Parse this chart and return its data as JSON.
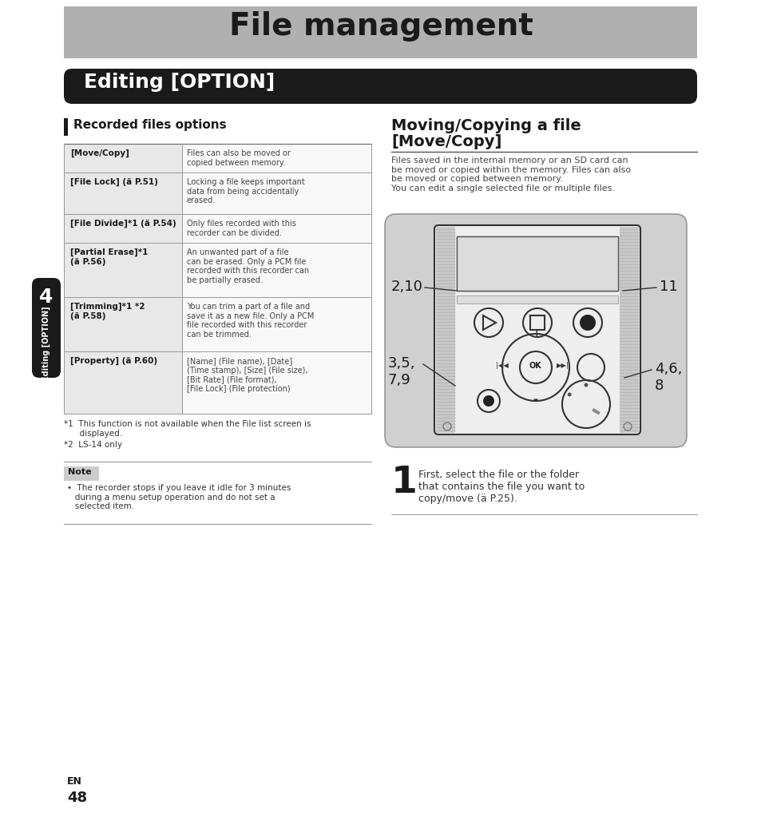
{
  "page_bg": "#ffffff",
  "header_bg": "#b0b0b0",
  "header_text": "File management",
  "header_text_color": "#1a1a1a",
  "section_bar_bg": "#1a1a1a",
  "section_bar_text": "Editing [OPTION]",
  "section_bar_text_color": "#ffffff",
  "left_section_title": "Recorded files options",
  "left_bar_color": "#1a1a1a",
  "table_rows": [
    {
      "col1": "[Move/Copy]",
      "col2": "Files can also be moved or\ncopied between memory."
    },
    {
      "col1": "[File Lock] (ä P.51)",
      "col2": "Locking a file keeps important\ndata from being accidentally\nerased."
    },
    {
      "col1": "[File Divide]*1 (ä P.54)",
      "col2": "Only files recorded with this\nrecorder can be divided."
    },
    {
      "col1": "[Partial Erase]*1\n(ä P.56)",
      "col2": "An unwanted part of a file\ncan be erased. Only a PCM file\nrecorded with this recorder can\nbe partially erased."
    },
    {
      "col1": "[Trimming]*1 *2\n(ä P.58)",
      "col2": "You can trim a part of a file and\nsave it as a new file. Only a PCM\nfile recorded with this recorder\ncan be trimmed."
    },
    {
      "col1": "[Property] (ä P.60)",
      "col2": "[Name] (File name), [Date]\n(Time stamp), [Size] (File size),\n[Bit Rate] (File format),\n[File Lock] (File protection)"
    }
  ],
  "footnote1": "*1  This function is not available when the File list screen is\n      displayed.",
  "footnote2": "*2  LS-14 only",
  "note_title": "Note",
  "note_text": "•  The recorder stops if you leave it idle for 3 minutes\n   during a menu setup operation and do not set a\n   selected item.",
  "right_section_title1": "Moving/Copying a file",
  "right_section_title2": "[Move/Copy]",
  "right_intro": "Files saved in the internal memory or an SD card can\nbe moved or copied within the memory. Files can also\nbe moved or copied between memory.\nYou can edit a single selected file or multiple files.",
  "step1_num": "1",
  "step1_text": "First, select the file or the folder\nthat contains the file you want to\ncopy/move (ä P.25).",
  "side_tab_bg": "#1a1a1a",
  "side_tab_text": "4",
  "side_tab_subtext": "Editing [OPTION]",
  "page_num": "48",
  "page_lang": "EN",
  "device_label_210": "2,10",
  "device_label_11": "11",
  "device_label_359": "3,5,\n7,9",
  "device_label_468": "4,6,\n8"
}
